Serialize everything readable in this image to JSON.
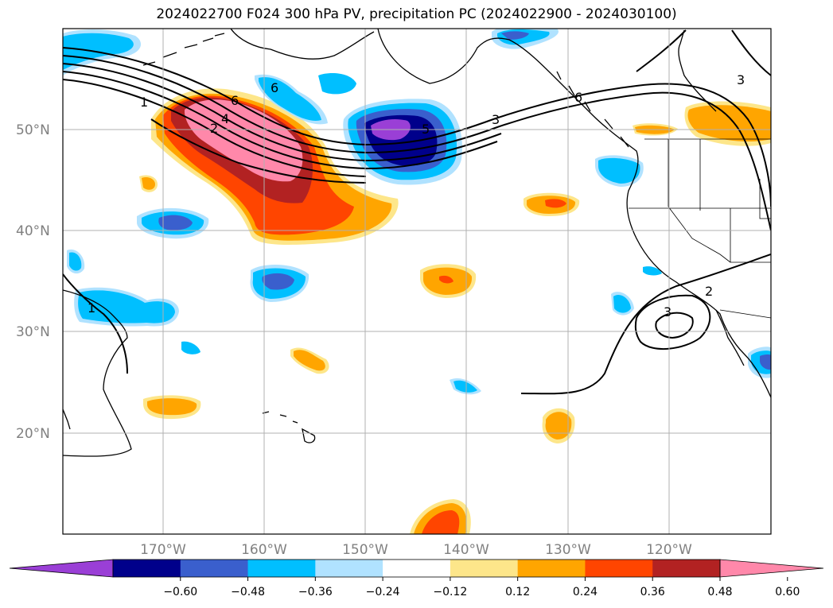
{
  "title": "2024022700 F024 300 hPa PV, precipitation PC (2024022900 - 2024030100)",
  "map": {
    "lat_ticks": [
      "50°N",
      "40°N",
      "30°N",
      "20°N"
    ],
    "lon_ticks": [
      "170°W",
      "160°W",
      "150°W",
      "140°W",
      "130°W",
      "120°W"
    ],
    "grid": true,
    "pv_contour_labels": [
      "1",
      "6",
      "4",
      "2",
      "6",
      "5",
      "3",
      "6",
      "3",
      "1",
      "2",
      "3"
    ]
  },
  "colorbar": {
    "ticks": [
      "−0.60",
      "−0.48",
      "−0.36",
      "−0.24",
      "−0.12",
      "0.12",
      "0.24",
      "0.36",
      "0.48",
      "0.60"
    ],
    "colors": [
      "#9a3fd6",
      "#00008b",
      "#3a5fcd",
      "#00bfff",
      "#b0e2ff",
      "#ffffff",
      "#fde68a",
      "#ffa500",
      "#ff4500",
      "#b22222",
      "#ff88aa"
    ]
  }
}
